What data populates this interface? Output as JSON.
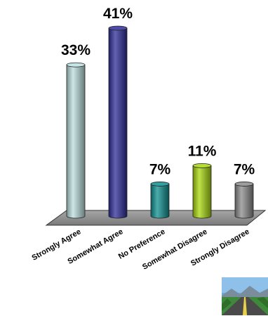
{
  "chart_data": {
    "type": "bar",
    "style": "3d-cylinder",
    "categories": [
      "Strongly Agree",
      "Somewhat Agree",
      "No Preference",
      "Somewhat Disagree",
      "Strongly Disagree"
    ],
    "values": [
      33,
      41,
      7,
      11,
      7
    ],
    "value_labels": [
      "33%",
      "41%",
      "7%",
      "11%",
      "7%"
    ],
    "colors": [
      "#bcdfe0",
      "#2e2e9a",
      "#0f8f8f",
      "#a8d80c",
      "#8c8c8c"
    ],
    "floor_color": "#8c8c8c",
    "ylim": [
      0,
      41
    ],
    "grid": false,
    "legend": "none",
    "title": "",
    "xlabel": "",
    "ylabel": ""
  },
  "logo": {
    "icon": "road-landscape-icon"
  }
}
